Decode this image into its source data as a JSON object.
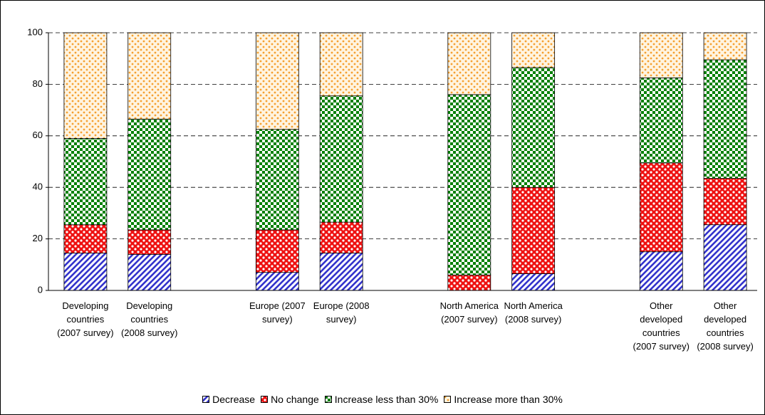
{
  "chart_data": {
    "type": "stacked_bar",
    "categories": [
      "Developing countries (2007 survey)",
      "Developing countries (2008 survey)",
      null,
      "Europe (2007 survey)",
      "Europe (2008 survey)",
      null,
      "North America (2007 survey)",
      "North America (2008 survey)",
      null,
      "Other developed countries (2007 survey)",
      "Other developed countries (2008 survey)"
    ],
    "series": [
      {
        "name": "Decrease",
        "color": "#3333cc",
        "values": [
          14.5,
          14,
          null,
          7,
          14.5,
          null,
          0,
          6.5,
          null,
          15,
          25.5
        ]
      },
      {
        "name": "No change",
        "color": "#ee1111",
        "values": [
          11,
          9.5,
          null,
          16.5,
          12,
          null,
          6,
          33.5,
          null,
          34.5,
          18
        ]
      },
      {
        "name": "Increase less than 30%",
        "color": "#008000",
        "values": [
          33.5,
          43,
          null,
          39,
          49,
          null,
          70,
          46.5,
          null,
          33,
          46
        ]
      },
      {
        "name": "Increase more than 30%",
        "color": "#f5a030",
        "values": [
          41,
          33.5,
          null,
          37.5,
          24.5,
          null,
          24,
          13.5,
          null,
          17.5,
          10.5
        ]
      }
    ],
    "ylim": [
      0,
      100
    ],
    "yticks": [
      0,
      20,
      40,
      60,
      80,
      100
    ],
    "grid": true
  }
}
